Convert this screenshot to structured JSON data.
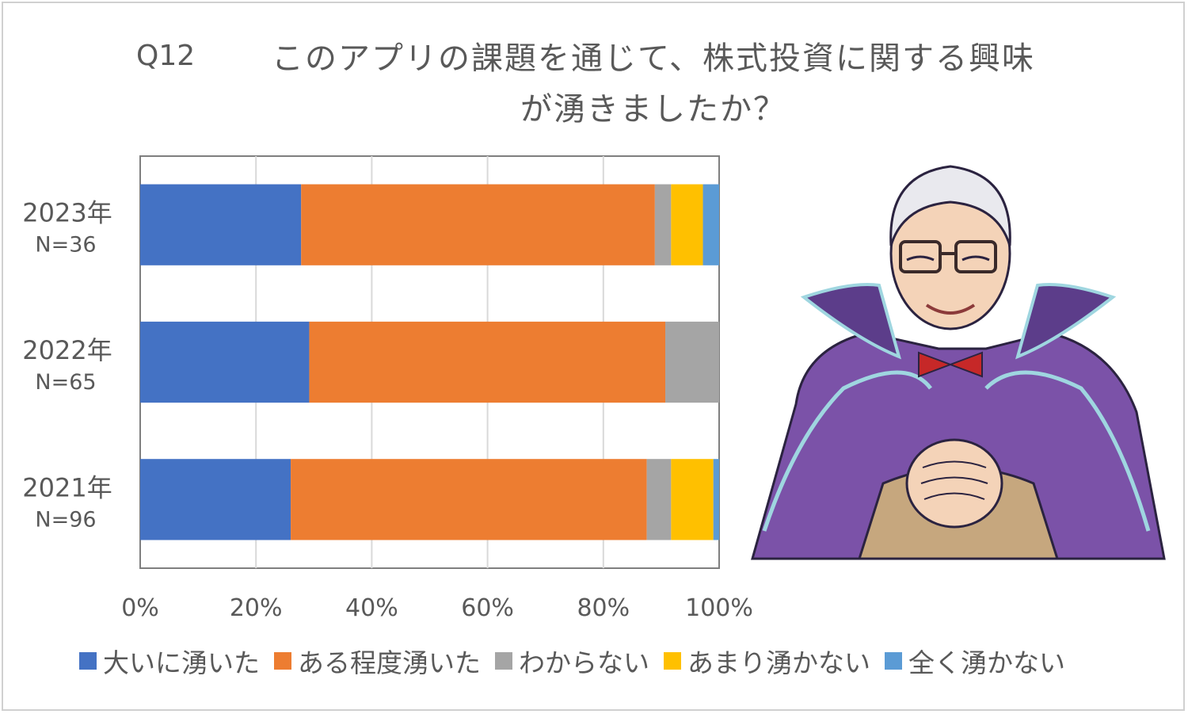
{
  "question_label": "Q12",
  "title_line1": "このアプリの課題を通じて、株式投資に関する興味",
  "title_line2": "が湧きましたか？",
  "colors": {
    "very": "#4472C4",
    "somewhat": "#ED7D31",
    "unknown": "#A5A5A5",
    "not_much": "#FFC000",
    "not_at_all": "#5B9BD5"
  },
  "illustration": "elderly-man-in-purple-cape-illustration",
  "chart_data": {
    "type": "bar",
    "orientation": "horizontal",
    "stacked": "percent",
    "categories": [
      "2023年",
      "2022年",
      "2021年"
    ],
    "category_sublabels": [
      "N=36",
      "N=65",
      "N=96"
    ],
    "series": [
      {
        "name": "大いに湧いた",
        "values": [
          27.8,
          29.2,
          26.0
        ]
      },
      {
        "name": "ある程度湧いた",
        "values": [
          61.1,
          61.5,
          61.5
        ]
      },
      {
        "name": "わからない",
        "values": [
          2.8,
          9.3,
          4.2
        ]
      },
      {
        "name": "あまり湧かない",
        "values": [
          5.5,
          0,
          7.3
        ]
      },
      {
        "name": "全く湧かない",
        "values": [
          2.8,
          0,
          1.0
        ]
      }
    ],
    "x_ticks": [
      "0%",
      "20%",
      "40%",
      "60%",
      "80%",
      "100%"
    ],
    "xlim": [
      0,
      100
    ],
    "grid": true,
    "legend": "bottom"
  }
}
